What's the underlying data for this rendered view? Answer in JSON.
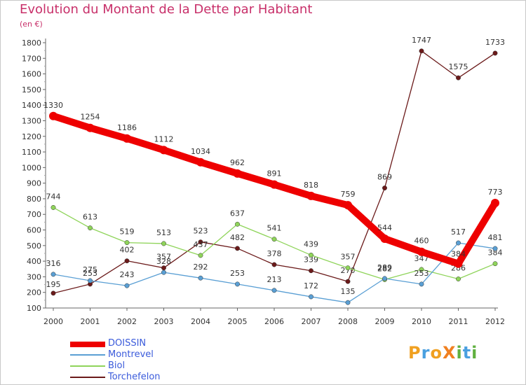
{
  "header": {
    "title": "Evolution du Montant de la Dette par Habitant",
    "subtitle": "(en €)"
  },
  "logo": {
    "text": "ProXiti",
    "letters": [
      "P",
      "r",
      "o",
      "X",
      "i",
      "t",
      "i"
    ],
    "colors": [
      "#f0a020",
      "#4aa0e0",
      "#f0a020",
      "#f08020",
      "#60b040",
      "#4aa0e0",
      "#60b040"
    ]
  },
  "chart_data": {
    "type": "line",
    "title": "Evolution du Montant de la Dette par Habitant",
    "subtitle": "(en €)",
    "xlabel": "",
    "ylabel": "",
    "ylim": [
      100,
      1800
    ],
    "yticks": [
      100,
      200,
      300,
      400,
      500,
      600,
      700,
      800,
      900,
      1000,
      1100,
      1200,
      1300,
      1400,
      1500,
      1600,
      1700,
      1800
    ],
    "grid": false,
    "legend_position": "bottom-left",
    "x": [
      "2000",
      "2001",
      "2002",
      "2003",
      "2004",
      "2005",
      "2006",
      "2007",
      "2008",
      "2009",
      "2010",
      "2011",
      "2012"
    ],
    "series": [
      {
        "name": "Torchefelon",
        "color": "#6b1a1a",
        "values": [
          195,
          253,
          402,
          357,
          523,
          482,
          378,
          339,
          270,
          869,
          1747,
          1575,
          1733
        ]
      },
      {
        "name": "Biol",
        "color": "#8fd45a",
        "values": [
          744,
          613,
          519,
          513,
          437,
          637,
          541,
          439,
          357,
          282,
          347,
          286,
          384
        ]
      },
      {
        "name": "Montrevel",
        "color": "#5a9fd4",
        "values": [
          316,
          275,
          243,
          328,
          292,
          253,
          213,
          172,
          135,
          289,
          253,
          517,
          481
        ]
      },
      {
        "name": "DOISSIN",
        "color": "#ee0000",
        "values": [
          1330,
          1254,
          1186,
          1112,
          1034,
          962,
          891,
          818,
          759,
          544,
          460,
          384,
          773
        ]
      }
    ],
    "legend": [
      {
        "name": "DOISSIN",
        "color": "#ee0000"
      },
      {
        "name": "Montrevel",
        "color": "#5a9fd4"
      },
      {
        "name": "Biol",
        "color": "#8fd45a"
      },
      {
        "name": "Torchefelon",
        "color": "#6b1a1a"
      }
    ]
  }
}
